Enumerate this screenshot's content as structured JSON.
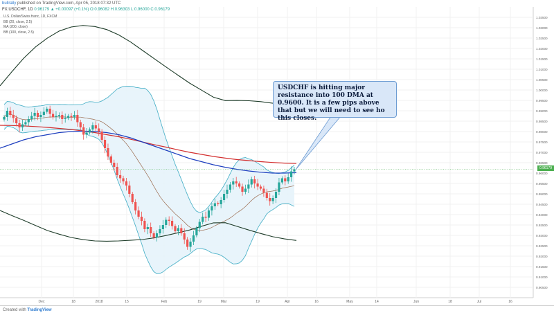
{
  "header": {
    "user": "bullrally",
    "published": "published on TradingView.com, Apr 05, 2018 07:32 UTC",
    "symbol": "FX:USDCHF, 1D",
    "ohlc": "0.96179 ▲ +0.00097 (+0.1%) O:0.96082 H:0.96303 L:0.96000 C:0.96179",
    "legend_title": "U.S. Dollar/Swiss franc, 1D, FXCM",
    "indicators": [
      "BB (20, close, 2.5)",
      "MA (200, close)",
      "BB (100, close, 2.5)"
    ]
  },
  "annotation": {
    "text": "USDCHF is hitting major resistance into 100 DMA at 0.9600. It is a few pips above that but we will need to see ho this closes."
  },
  "price_label": "0.96179",
  "footer": {
    "created_with": "Created with",
    "brand": "TradingView"
  },
  "colors": {
    "up": "#26a69a",
    "down": "#ef5350",
    "bb20_band": "#4fb3c9",
    "bb100_band": "#1f3d2a",
    "ma200": "#d32f2f",
    "bb100_basis": "#1e3fbf",
    "bb20_basis": "#9b6b4f",
    "fill": "#e6f3fb"
  },
  "chart_data": {
    "type": "candlestick",
    "title": "U.S. Dollar/Swiss franc, 1D, FXCM",
    "ylim": [
      0.9,
      1.04
    ],
    "x_ticks": [
      "Dec",
      "18",
      "2018",
      "15",
      "Feb",
      "19",
      "Mar",
      "19",
      "Apr",
      "16",
      "May",
      "14",
      "Jun",
      "18",
      "Jul",
      "16"
    ],
    "y_ticks": [
      "1.03500",
      "1.03000",
      "1.02500",
      "1.02000",
      "1.01500",
      "1.01000",
      "1.00500",
      "1.00000",
      "0.99500",
      "0.99000",
      "0.98500",
      "0.98000",
      "0.97500",
      "0.97000",
      "0.96500",
      "0.96000",
      "0.95500",
      "0.95000",
      "0.94500",
      "0.94000",
      "0.93500",
      "0.93000",
      "0.92500",
      "0.92000",
      "0.91500",
      "0.91000",
      "0.90500"
    ],
    "last_price": 0.96179,
    "closes": [
      0.987,
      0.99,
      0.988,
      0.9865,
      0.984,
      0.982,
      0.9835,
      0.9845,
      0.986,
      0.9875,
      0.989,
      0.987,
      0.988,
      0.9895,
      0.991,
      0.9885,
      0.987,
      0.9875,
      0.988,
      0.986,
      0.9865,
      0.9875,
      0.987,
      0.988,
      0.9845,
      0.982,
      0.9785,
      0.9795,
      0.981,
      0.983,
      0.9815,
      0.98,
      0.976,
      0.972,
      0.968,
      0.965,
      0.963,
      0.959,
      0.9575,
      0.956,
      0.954,
      0.95,
      0.946,
      0.942,
      0.939,
      0.937,
      0.933,
      0.934,
      0.931,
      0.929,
      0.931,
      0.933,
      0.935,
      0.9375,
      0.937,
      0.9345,
      0.932,
      0.9335,
      0.931,
      0.928,
      0.9245,
      0.927,
      0.93,
      0.9335,
      0.9365,
      0.939,
      0.9385,
      0.942,
      0.944,
      0.9455,
      0.945,
      0.947,
      0.95,
      0.952,
      0.9545,
      0.956,
      0.955,
      0.9535,
      0.951,
      0.9525,
      0.9545,
      0.957,
      0.955,
      0.9535,
      0.9525,
      0.9505,
      0.948,
      0.9465,
      0.948,
      0.951,
      0.9555,
      0.9575,
      0.956,
      0.958,
      0.9608,
      0.96179
    ],
    "series": [
      {
        "name": "MA (200, close)",
        "values": [
          0.983,
          0.9829,
          0.9827,
          0.9824,
          0.982,
          0.9815,
          0.981,
          0.9803,
          0.9795,
          0.9785,
          0.9775,
          0.9763,
          0.975,
          0.9737,
          0.9725,
          0.9712,
          0.97,
          0.969,
          0.968,
          0.9672,
          0.9665,
          0.966,
          0.9655,
          0.9651,
          0.9648,
          0.9646
        ]
      },
      {
        "name": "BB (100, close, 2.5) basis",
        "values": [
          0.972,
          0.974,
          0.976,
          0.9775,
          0.9785,
          0.9795,
          0.98,
          0.9802,
          0.98,
          0.9795,
          0.9785,
          0.977,
          0.975,
          0.973,
          0.971,
          0.969,
          0.967,
          0.9655,
          0.964,
          0.9628,
          0.9618,
          0.961,
          0.9604,
          0.96,
          0.96,
          0.9602
        ]
      }
    ]
  }
}
